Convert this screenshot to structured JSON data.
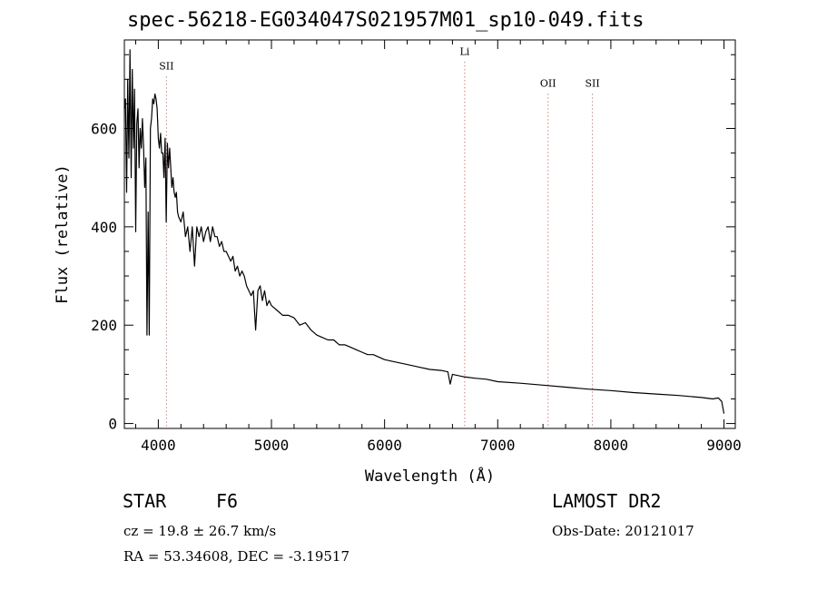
{
  "chart_data": {
    "type": "line",
    "title": "spec-56218-EG034047S021957M01_sp10-049.fits",
    "xlabel": "Wavelength (Å)",
    "ylabel": "Flux (relative)",
    "xlim": [
      3700,
      9100
    ],
    "ylim": [
      -10,
      780
    ],
    "x_ticks": [
      4000,
      5000,
      6000,
      7000,
      8000,
      9000
    ],
    "x_tick_labels": [
      "4000",
      "5000",
      "6000",
      "7000",
      "8000",
      "9000"
    ],
    "y_ticks": [
      0,
      200,
      400,
      600
    ],
    "y_tick_labels": [
      "0",
      "200",
      "400",
      "600"
    ],
    "grid": false,
    "series": [
      {
        "x": [
          3700,
          3710,
          3720,
          3730,
          3740,
          3750,
          3760,
          3770,
          3780,
          3790,
          3800,
          3810,
          3820,
          3830,
          3840,
          3850,
          3860,
          3870,
          3880,
          3890,
          3900,
          3910,
          3920,
          3930,
          3940,
          3950,
          3960,
          3970,
          3980,
          3990,
          4000,
          4010,
          4020,
          4030,
          4040,
          4050,
          4060,
          4070,
          4080,
          4090,
          4100,
          4110,
          4120,
          4130,
          4140,
          4150,
          4160,
          4170,
          4180,
          4200,
          4220,
          4240,
          4260,
          4280,
          4300,
          4320,
          4340,
          4360,
          4380,
          4400,
          4420,
          4440,
          4460,
          4480,
          4500,
          4520,
          4540,
          4560,
          4580,
          4600,
          4620,
          4640,
          4660,
          4680,
          4700,
          4720,
          4740,
          4760,
          4780,
          4800,
          4820,
          4840,
          4860,
          4880,
          4900,
          4920,
          4940,
          4960,
          4980,
          5000,
          5050,
          5100,
          5150,
          5200,
          5250,
          5300,
          5350,
          5400,
          5450,
          5500,
          5550,
          5600,
          5650,
          5700,
          5750,
          5800,
          5850,
          5900,
          5950,
          6000,
          6100,
          6200,
          6300,
          6400,
          6500,
          6560,
          6580,
          6600,
          6700,
          6800,
          6900,
          7000,
          7200,
          7400,
          7600,
          7800,
          8000,
          8200,
          8400,
          8600,
          8800,
          8900,
          8950,
          8980,
          9000
        ],
        "y": [
          640,
          660,
          470,
          700,
          540,
          760,
          500,
          720,
          560,
          680,
          390,
          610,
          640,
          520,
          600,
          560,
          620,
          560,
          480,
          540,
          180,
          430,
          180,
          600,
          620,
          660,
          650,
          670,
          660,
          640,
          580,
          560,
          590,
          550,
          550,
          500,
          580,
          410,
          570,
          520,
          560,
          520,
          480,
          500,
          470,
          460,
          470,
          430,
          420,
          410,
          430,
          380,
          400,
          350,
          400,
          320,
          400,
          380,
          400,
          370,
          390,
          400,
          370,
          400,
          380,
          380,
          360,
          370,
          350,
          350,
          340,
          330,
          340,
          310,
          320,
          300,
          310,
          300,
          280,
          270,
          260,
          270,
          190,
          270,
          280,
          250,
          270,
          240,
          250,
          240,
          230,
          220,
          220,
          215,
          200,
          205,
          190,
          180,
          175,
          170,
          170,
          160,
          160,
          155,
          150,
          145,
          140,
          140,
          135,
          130,
          125,
          120,
          115,
          110,
          108,
          105,
          80,
          100,
          95,
          92,
          90,
          85,
          82,
          78,
          74,
          70,
          67,
          63,
          60,
          57,
          53,
          50,
          52,
          45,
          20
        ]
      }
    ],
    "annotations": [
      {
        "label": "SII",
        "x": 4072,
        "y": 720
      },
      {
        "label": "Li",
        "x": 6708,
        "y": 750
      },
      {
        "label": "OII",
        "x": 7445,
        "y": 685
      },
      {
        "label": "SII",
        "x": 7837,
        "y": 685
      }
    ]
  },
  "footer": {
    "object_type": "STAR",
    "subclass": "F6",
    "survey": "LAMOST DR2",
    "redshift": "cz = 19.8 ± 26.7 km/s",
    "obs_date": "Obs-Date: 20121017",
    "coords": "RA =  53.34608, DEC =  -3.19517"
  },
  "colors": {
    "spectrum": "#000000",
    "marker_lines": "#e03030",
    "axes": "#000000"
  }
}
